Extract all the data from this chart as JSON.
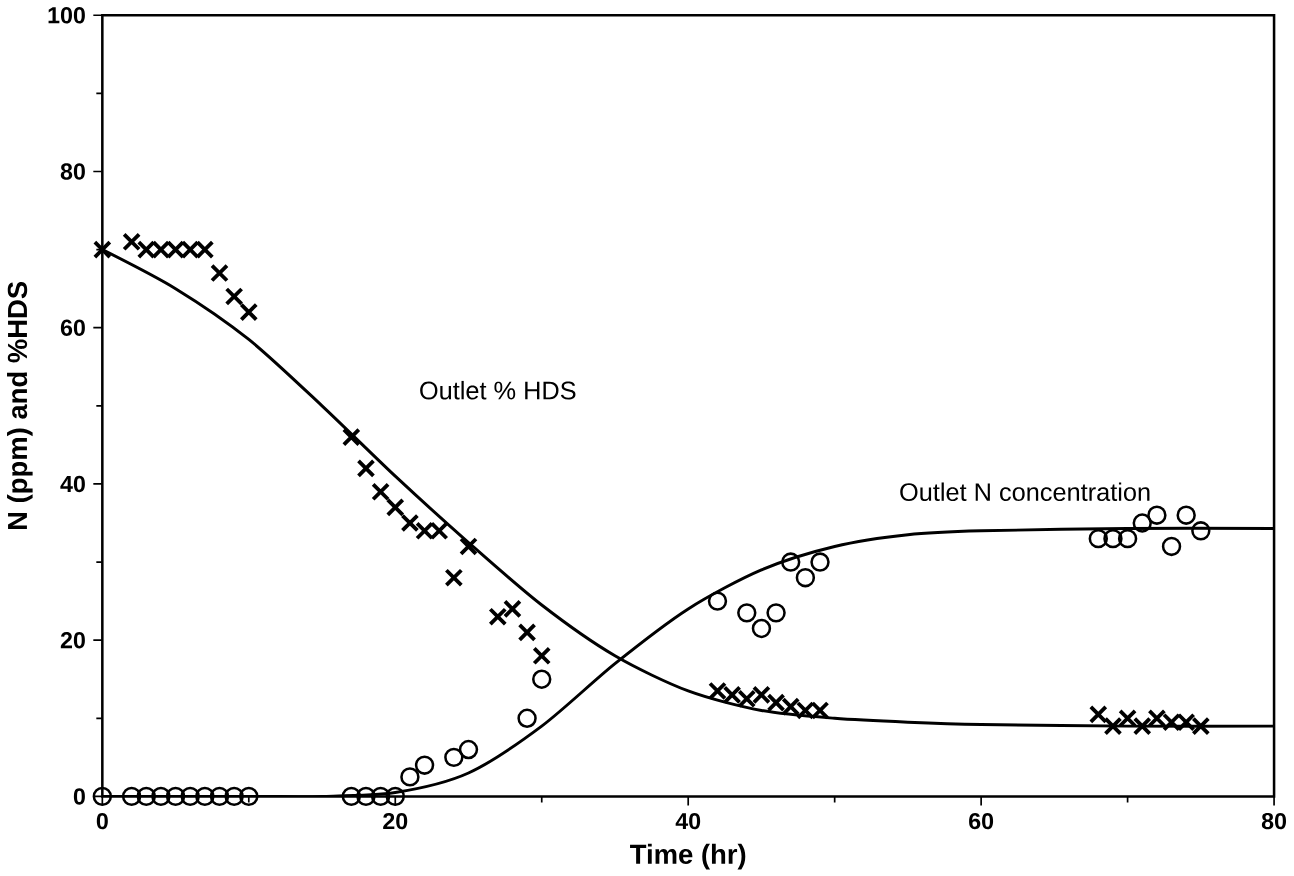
{
  "chart_data": {
    "type": "scatter",
    "xlabel": "Time (hr)",
    "ylabel": "N (ppm) and %HDS",
    "xlim": [
      0,
      80
    ],
    "ylim": [
      0,
      100
    ],
    "xticks": [
      0,
      20,
      40,
      60,
      80
    ],
    "yticks": [
      0,
      20,
      40,
      60,
      80,
      100
    ],
    "grid": false,
    "annotations": [
      "Outlet % HDS",
      "Outlet N concentration"
    ],
    "series": [
      {
        "marker": "cross",
        "color": "#000000",
        "x": [
          0,
          2,
          3,
          4,
          5,
          6,
          7,
          8,
          9,
          10,
          17,
          18,
          19,
          20,
          21,
          22,
          23,
          24,
          25,
          27,
          28,
          29,
          30,
          42,
          43,
          44,
          45,
          46,
          47,
          48,
          49,
          68,
          69,
          70,
          71,
          72,
          73,
          74,
          75
        ],
        "values": [
          70,
          71,
          70,
          70,
          70,
          70,
          70,
          67,
          64,
          62,
          46,
          42,
          39,
          37,
          35,
          34,
          34,
          28,
          32,
          23,
          24,
          21,
          18,
          13.5,
          13,
          12.5,
          13,
          12,
          11.5,
          11,
          11,
          10.5,
          9,
          10,
          9,
          10,
          9.5,
          9.5,
          9
        ]
      },
      {
        "marker": "circle",
        "color": "#000000",
        "x": [
          0,
          2,
          3,
          4,
          5,
          6,
          7,
          8,
          9,
          10,
          17,
          18,
          19,
          20,
          21,
          22,
          24,
          25,
          29,
          30,
          42,
          44,
          45,
          46,
          47,
          48,
          49,
          68,
          69,
          70,
          71,
          72,
          73,
          74,
          75
        ],
        "values": [
          0,
          0,
          0,
          0,
          0,
          0,
          0,
          0,
          0,
          0,
          0,
          0,
          0,
          0,
          2.5,
          4,
          5,
          6,
          10,
          15,
          25,
          23.5,
          21.5,
          23.5,
          30,
          28,
          30,
          33,
          33,
          33,
          35,
          36,
          32,
          36,
          34
        ]
      },
      {
        "type": "line",
        "marker": "none",
        "color": "#000000",
        "x": [
          0,
          5,
          10,
          15,
          20,
          25,
          30,
          35,
          40,
          45,
          50,
          55,
          60,
          70,
          80
        ],
        "values": [
          70,
          65,
          58.5,
          50,
          41,
          32.5,
          24.5,
          18,
          13.5,
          11,
          10,
          9.5,
          9.2,
          9,
          9
        ]
      },
      {
        "type": "line",
        "marker": "none",
        "color": "#000000",
        "x": [
          0,
          10,
          15,
          20,
          25,
          30,
          35,
          40,
          45,
          50,
          55,
          60,
          70,
          80
        ],
        "values": [
          0,
          0,
          0,
          0.5,
          3,
          9,
          17,
          24,
          29,
          32,
          33.5,
          34,
          34.3,
          34.3
        ]
      }
    ]
  }
}
